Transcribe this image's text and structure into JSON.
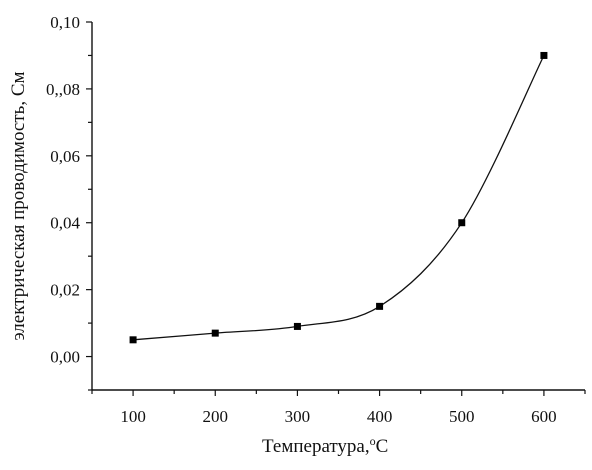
{
  "chart_data": {
    "type": "scatter",
    "xlabel": "Температура,",
    "xlabel_sup": "о",
    "xlabel_unit": "С",
    "ylabel": "электрическая проводимость, См",
    "xlim": [
      50,
      650
    ],
    "ylim": [
      -0.01,
      0.1
    ],
    "x_ticks": [
      {
        "value": 100,
        "label": "100"
      },
      {
        "value": 200,
        "label": "200"
      },
      {
        "value": 300,
        "label": "300"
      },
      {
        "value": 400,
        "label": "400"
      },
      {
        "value": 500,
        "label": "500"
      },
      {
        "value": 600,
        "label": "600"
      }
    ],
    "y_ticks": [
      {
        "value": 0.0,
        "label": "0,00"
      },
      {
        "value": 0.02,
        "label": "0,02"
      },
      {
        "value": 0.04,
        "label": "0,04"
      },
      {
        "value": 0.06,
        "label": "0,06"
      },
      {
        "value": 0.08,
        "label": "0,,08"
      },
      {
        "value": 0.1,
        "label": "0,10"
      }
    ],
    "series": [
      {
        "x": [
          100,
          200,
          300,
          400,
          500,
          600
        ],
        "y": [
          0.005,
          0.007,
          0.009,
          0.015,
          0.04,
          0.09
        ],
        "marker": "square",
        "fit_line": true
      }
    ],
    "grid": false,
    "legend": "none"
  }
}
